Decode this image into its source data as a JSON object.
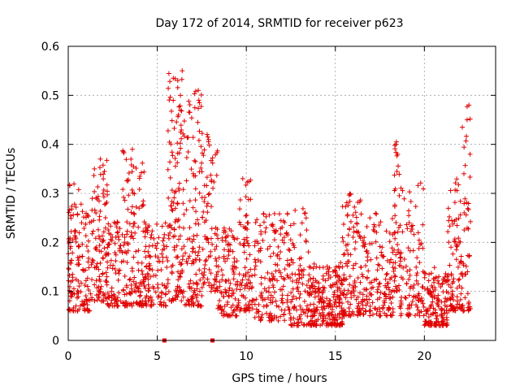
{
  "chart_data": {
    "type": "scatter",
    "title": "Day 172 of 2014, SRMTID for receiver p623",
    "xlabel": "GPS time / hours",
    "ylabel": "SRMTID / TECUs",
    "xlim": [
      0,
      24
    ],
    "ylim": [
      0,
      0.6
    ],
    "grid": true,
    "marker": "+",
    "color": "#e00000",
    "x_ticks": [
      0,
      5,
      10,
      15,
      20
    ],
    "x_tick_labels": [
      "0",
      "5",
      "10",
      "15",
      "20"
    ],
    "y_ticks": [
      0,
      0.1,
      0.2,
      0.3,
      0.4,
      0.5,
      0.6
    ],
    "y_tick_labels": [
      "0",
      "0.1",
      "0.2",
      "0.3",
      "0.4",
      "0.5",
      "0.6"
    ],
    "series": [
      {
        "name": "SRMTID",
        "clusters": [
          {
            "x_range": [
              0.0,
              1.2
            ],
            "y_range": [
              0.06,
              0.32
            ],
            "count": 140
          },
          {
            "x_range": [
              1.2,
              2.2
            ],
            "y_range": [
              0.08,
              0.37
            ],
            "count": 110
          },
          {
            "x_range": [
              2.2,
              3.0
            ],
            "y_range": [
              0.07,
              0.26
            ],
            "count": 80
          },
          {
            "x_range": [
              3.0,
              4.3
            ],
            "y_range": [
              0.07,
              0.39
            ],
            "count": 140
          },
          {
            "x_range": [
              4.3,
              5.6
            ],
            "y_range": [
              0.07,
              0.25
            ],
            "count": 110
          },
          {
            "x_range": [
              5.6,
              6.5
            ],
            "y_range": [
              0.08,
              0.55
            ],
            "count": 130
          },
          {
            "x_range": [
              6.5,
              7.6
            ],
            "y_range": [
              0.07,
              0.51
            ],
            "count": 130
          },
          {
            "x_range": [
              7.6,
              8.4
            ],
            "y_range": [
              0.1,
              0.42
            ],
            "count": 80
          },
          {
            "x_range": [
              8.4,
              9.6
            ],
            "y_range": [
              0.05,
              0.23
            ],
            "count": 110
          },
          {
            "x_range": [
              9.6,
              10.4
            ],
            "y_range": [
              0.06,
              0.33
            ],
            "count": 80
          },
          {
            "x_range": [
              10.4,
              12.5
            ],
            "y_range": [
              0.04,
              0.26
            ],
            "count": 170
          },
          {
            "x_range": [
              12.5,
              13.5
            ],
            "y_range": [
              0.03,
              0.27
            ],
            "count": 90
          },
          {
            "x_range": [
              13.5,
              15.4
            ],
            "y_range": [
              0.03,
              0.16
            ],
            "count": 230
          },
          {
            "x_range": [
              15.4,
              16.6
            ],
            "y_range": [
              0.05,
              0.3
            ],
            "count": 130
          },
          {
            "x_range": [
              16.6,
              18.3
            ],
            "y_range": [
              0.05,
              0.26
            ],
            "count": 140
          },
          {
            "x_range": [
              18.3,
              18.6
            ],
            "y_range": [
              0.1,
              0.41
            ],
            "count": 40
          },
          {
            "x_range": [
              18.6,
              20.0
            ],
            "y_range": [
              0.05,
              0.33
            ],
            "count": 110
          },
          {
            "x_range": [
              20.0,
              21.3
            ],
            "y_range": [
              0.03,
              0.15
            ],
            "count": 140
          },
          {
            "x_range": [
              21.3,
              22.1
            ],
            "y_range": [
              0.06,
              0.35
            ],
            "count": 90
          },
          {
            "x_range": [
              22.1,
              22.6
            ],
            "y_range": [
              0.06,
              0.48
            ],
            "count": 50
          }
        ],
        "outliers": [
          {
            "x": 5.9,
            "y": 0.535
          },
          {
            "x": 6.4,
            "y": 0.55
          },
          {
            "x": 6.3,
            "y": 0.5
          },
          {
            "x": 7.3,
            "y": 0.51
          },
          {
            "x": 7.8,
            "y": 0.42
          },
          {
            "x": 18.4,
            "y": 0.4
          },
          {
            "x": 18.5,
            "y": 0.38
          },
          {
            "x": 22.5,
            "y": 0.48
          },
          {
            "x": 22.4,
            "y": 0.45
          },
          {
            "x": 9.8,
            "y": 0.33
          },
          {
            "x": 3.6,
            "y": 0.39
          },
          {
            "x": 1.8,
            "y": 0.37
          }
        ]
      }
    ],
    "markers_at_zero": [
      {
        "x": 5.4,
        "y": 0.0
      },
      {
        "x": 8.1,
        "y": 0.0
      }
    ]
  }
}
